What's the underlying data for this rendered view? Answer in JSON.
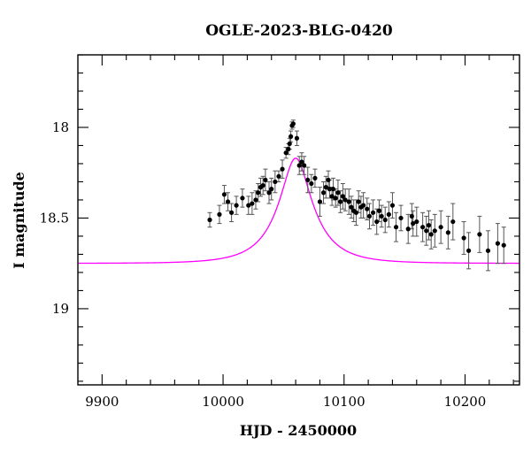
{
  "chart_data": {
    "type": "scatter",
    "title": "OGLE-2023-BLG-0420",
    "xlabel": "HJD - 2450000",
    "ylabel": "I magnitude",
    "xlim": [
      9880,
      10245
    ],
    "ylim": [
      19.42,
      17.6
    ],
    "y_inverted": true,
    "grid": false,
    "x_major_ticks": [
      9900,
      10000,
      10100,
      10200
    ],
    "y_major_ticks": [
      18,
      18.5,
      19
    ],
    "x_tick_labels": [
      "9900",
      "10000",
      "10100",
      "10200"
    ],
    "y_tick_labels": [
      "18",
      "18.5",
      "19"
    ],
    "colors": {
      "data": "#000000",
      "model": "#ff00ff"
    },
    "model": {
      "type": "point-lens",
      "t0": 10060,
      "u0": 0.35,
      "tE": 33,
      "baseline_mag": 18.75,
      "peak_mag": 18.17
    },
    "series": [
      {
        "x": [
          9989,
          9997,
          10001,
          10004,
          10007,
          10011,
          10016,
          10021,
          10024,
          10027,
          10029,
          10031,
          10033,
          10035,
          10038,
          10040,
          10043,
          10046,
          10049,
          10052,
          10054,
          10055,
          10056,
          10057,
          10058,
          10061,
          10063,
          10065,
          10067,
          10070,
          10073,
          10076,
          10080,
          10083,
          10085,
          10087,
          10088,
          10090,
          10091,
          10093,
          10095,
          10097,
          10099,
          10101,
          10104,
          10106,
          10108,
          10110,
          10112,
          10114,
          10116,
          10119,
          10121,
          10124,
          10127,
          10129,
          10131,
          10134,
          10137,
          10140,
          10143,
          10147,
          10153,
          10156,
          10157,
          10160,
          10165,
          10168,
          10170,
          10172,
          10175,
          10180,
          10186,
          10190,
          10199,
          10203,
          10212,
          10219,
          10227,
          10232
        ],
        "y": [
          18.51,
          18.48,
          18.37,
          18.41,
          18.47,
          18.43,
          18.39,
          18.43,
          18.42,
          18.4,
          18.36,
          18.33,
          18.32,
          18.29,
          18.36,
          18.34,
          18.3,
          18.27,
          18.23,
          18.14,
          18.12,
          18.09,
          18.05,
          17.99,
          17.98,
          18.06,
          18.21,
          18.19,
          18.21,
          18.29,
          18.31,
          18.28,
          18.41,
          18.36,
          18.33,
          18.29,
          18.34,
          18.38,
          18.34,
          18.39,
          18.36,
          18.41,
          18.38,
          18.4,
          18.41,
          18.44,
          18.46,
          18.47,
          18.41,
          18.44,
          18.43,
          18.45,
          18.49,
          18.47,
          18.52,
          18.46,
          18.49,
          18.51,
          18.48,
          18.43,
          18.55,
          18.5,
          18.56,
          18.49,
          18.53,
          18.52,
          18.55,
          18.57,
          18.54,
          18.59,
          18.57,
          18.55,
          18.58,
          18.52,
          18.61,
          18.68,
          18.59,
          18.68,
          18.64,
          18.65
        ],
        "error": [
          0.04,
          0.05,
          0.05,
          0.05,
          0.05,
          0.05,
          0.05,
          0.05,
          0.06,
          0.05,
          0.05,
          0.05,
          0.05,
          0.06,
          0.06,
          0.06,
          0.06,
          0.03,
          0.05,
          0.03,
          0.03,
          0.03,
          0.03,
          0.02,
          0.02,
          0.04,
          0.05,
          0.05,
          0.05,
          0.07,
          0.05,
          0.05,
          0.08,
          0.06,
          0.06,
          0.05,
          0.05,
          0.05,
          0.06,
          0.05,
          0.07,
          0.06,
          0.07,
          0.06,
          0.07,
          0.06,
          0.06,
          0.07,
          0.06,
          0.06,
          0.07,
          0.06,
          0.07,
          0.07,
          0.07,
          0.06,
          0.06,
          0.07,
          0.07,
          0.07,
          0.08,
          0.07,
          0.08,
          0.07,
          0.07,
          0.08,
          0.08,
          0.08,
          0.08,
          0.08,
          0.09,
          0.09,
          0.09,
          0.1,
          0.09,
          0.1,
          0.1,
          0.11,
          0.11,
          0.1
        ]
      }
    ]
  }
}
